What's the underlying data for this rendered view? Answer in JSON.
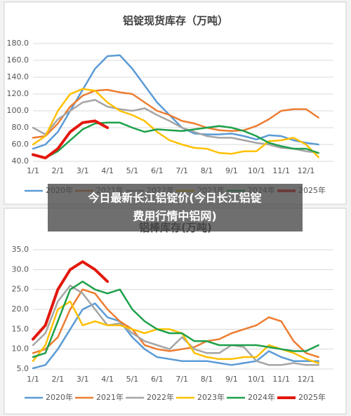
{
  "chart_data": [
    {
      "type": "line",
      "title": "铝锭现货库存（万吨）",
      "categories": [
        "1/1",
        null,
        "2/1",
        null,
        "3/1",
        null,
        "4/1",
        null,
        "5/1",
        null,
        "6/1",
        null,
        "7/1",
        null,
        "8/1",
        null,
        "9/1",
        null,
        "10/1",
        null,
        "11/1",
        null,
        "12/1",
        null
      ],
      "ylim": [
        40,
        180
      ],
      "yticks": [
        {
          "value": 40,
          "label": "40.0"
        },
        {
          "value": 60,
          "label": "60.0"
        },
        {
          "value": 80,
          "label": "80.0"
        },
        {
          "value": 100,
          "label": "100.0"
        },
        {
          "value": 120,
          "label": "120.0"
        },
        {
          "value": 140,
          "label": "140.0"
        },
        {
          "value": 160,
          "label": "160.0"
        },
        {
          "value": 180,
          "label": "180.0"
        }
      ],
      "grid": true,
      "series": [
        {
          "name": "2020年",
          "color": "#5b9bd5",
          "values": [
            55,
            60,
            75,
            100,
            125,
            150,
            165,
            166,
            150,
            130,
            110,
            95,
            80,
            73,
            72,
            72,
            73,
            70,
            66,
            71,
            70,
            65,
            62,
            60
          ]
        },
        {
          "name": "2021年",
          "color": "#ed7d31",
          "values": [
            68,
            70,
            85,
            105,
            118,
            124,
            125,
            122,
            120,
            110,
            100,
            95,
            88,
            85,
            80,
            77,
            76,
            77,
            82,
            90,
            100,
            102,
            102,
            92
          ]
        },
        {
          "name": "2022年",
          "color": "#a5a5a5",
          "values": [
            80,
            72,
            90,
            100,
            110,
            113,
            105,
            102,
            100,
            103,
            95,
            88,
            80,
            75,
            70,
            68,
            68,
            65,
            62,
            60,
            56,
            55,
            52,
            50
          ]
        },
        {
          "name": "2023年",
          "color": "#ffc000",
          "values": [
            60,
            70,
            100,
            120,
            126,
            124,
            110,
            100,
            95,
            88,
            75,
            65,
            60,
            56,
            55,
            50,
            49,
            52,
            52,
            64,
            65,
            68,
            60,
            45
          ]
        },
        {
          "name": "2024年",
          "color": "#1ea04a",
          "values": [
            48,
            44,
            52,
            65,
            78,
            85,
            86,
            86,
            80,
            75,
            78,
            77,
            76,
            78,
            80,
            82,
            80,
            76,
            70,
            62,
            58,
            55,
            55,
            50
          ]
        },
        {
          "name": "2025年",
          "color": "#e3170d",
          "values": [
            48,
            44,
            55,
            75,
            86,
            88,
            80,
            null,
            null,
            null,
            null,
            null,
            null,
            null,
            null,
            null,
            null,
            null,
            null,
            null,
            null,
            null,
            null,
            null
          ]
        }
      ]
    },
    {
      "type": "line",
      "title": "铝棒库存(万吨)",
      "categories": [
        "1/1",
        null,
        "2/1",
        null,
        "3/1",
        null,
        "4/1",
        null,
        "5/1",
        null,
        "6/1",
        null,
        "7/1",
        null,
        "8/1",
        null,
        "9/1",
        null,
        "10/1",
        null,
        "11/1",
        null,
        "12/1",
        null
      ],
      "ylim": [
        5,
        35
      ],
      "yticks": [
        {
          "value": 5,
          "label": "5.0"
        },
        {
          "value": 10,
          "label": "10.0"
        },
        {
          "value": 15,
          "label": "15.0"
        },
        {
          "value": 20,
          "label": "20.0"
        },
        {
          "value": 25,
          "label": "25.0"
        },
        {
          "value": 30,
          "label": "30.0"
        },
        {
          "value": 35,
          "label": "35.0"
        }
      ],
      "grid": true,
      "series": [
        {
          "name": "2020年",
          "color": "#5b9bd5",
          "values": [
            5.2,
            6,
            10,
            15,
            20,
            21.5,
            18,
            17,
            13,
            10,
            8,
            7.5,
            7,
            7,
            7,
            6.5,
            6,
            6.5,
            7,
            9.5,
            8,
            7,
            7,
            7
          ]
        },
        {
          "name": "2021年",
          "color": "#ed7d31",
          "values": [
            9,
            10,
            13,
            20,
            25,
            24,
            20,
            17,
            15,
            11,
            10,
            9.5,
            10,
            10.5,
            12,
            12.5,
            14,
            15,
            16,
            18,
            17,
            12,
            9,
            8
          ]
        },
        {
          "name": "2022年",
          "color": "#a5a5a5",
          "values": [
            11,
            14,
            22,
            26,
            24,
            20,
            16,
            16.5,
            14,
            12,
            11,
            10,
            13,
            10,
            9,
            9,
            11,
            10.5,
            7,
            6,
            6,
            6.5,
            6,
            6
          ]
        },
        {
          "name": "2023年",
          "color": "#ffc000",
          "values": [
            7,
            11,
            20,
            22,
            16,
            17,
            16,
            16,
            15,
            14,
            15,
            15,
            14,
            9,
            8,
            7.5,
            7.5,
            8,
            8,
            11,
            10,
            9,
            7.5,
            6.5
          ]
        },
        {
          "name": "2024年",
          "color": "#1ea04a",
          "values": [
            8,
            9,
            17,
            25,
            27,
            25,
            24,
            25,
            20,
            17,
            15,
            14,
            14,
            12,
            12,
            11,
            11,
            11,
            11,
            10.5,
            10,
            9.5,
            9.5,
            11
          ]
        },
        {
          "name": "2025年",
          "color": "#e3170d",
          "values": [
            12.5,
            16,
            25,
            30,
            32,
            30,
            27,
            null,
            null,
            null,
            null,
            null,
            null,
            null,
            null,
            null,
            null,
            null,
            null,
            null,
            null,
            null,
            null,
            null
          ]
        }
      ]
    }
  ],
  "banner": {
    "lines": [
      "今日最新长江铝锭价(今日长江铝锭",
      "费用行情中铝网)"
    ]
  }
}
